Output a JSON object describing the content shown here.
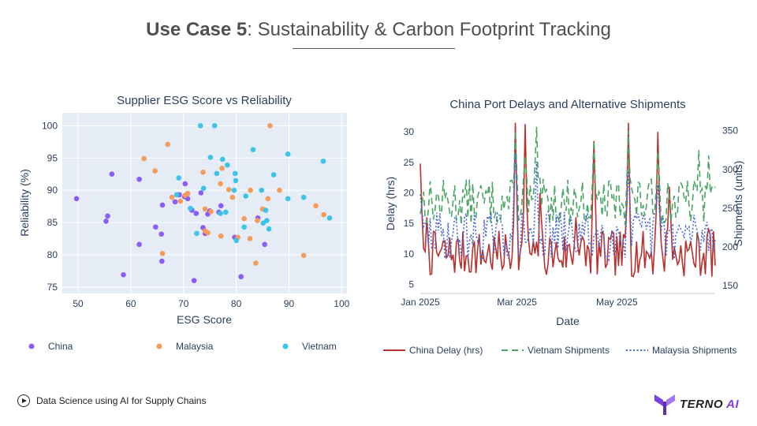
{
  "slide": {
    "title_bold": "Use Case 5",
    "title_rest": ": Sustainability & Carbon Footprint Tracking",
    "footer_text": "Data Science using AI for Supply Chains",
    "logo_main": "TERNO",
    "logo_ai": "AI"
  },
  "chart_data": [
    {
      "type": "scatter",
      "title": "Supplier ESG Score vs Reliability",
      "xlabel": "ESG Score",
      "ylabel": "Reliability (%)",
      "xlim": [
        47,
        101
      ],
      "ylim": [
        74,
        102
      ],
      "xticks": [
        50,
        60,
        70,
        80,
        90,
        100
      ],
      "yticks": [
        75,
        80,
        85,
        90,
        95,
        100
      ],
      "legend_position": "bottom",
      "series": [
        {
          "name": "China",
          "color": "#8b5cf6",
          "points": [
            [
              49.7,
              88.7
            ],
            [
              56.4,
              92.5
            ],
            [
              55.6,
              86.0
            ],
            [
              55.3,
              85.2
            ],
            [
              58.6,
              76.9
            ],
            [
              61.6,
              81.6
            ],
            [
              61.6,
              91.7
            ],
            [
              64.7,
              84.3
            ],
            [
              65.8,
              83.2
            ],
            [
              65.9,
              79.0
            ],
            [
              66.0,
              87.7
            ],
            [
              68.4,
              88.2
            ],
            [
              69.2,
              89.3
            ],
            [
              70.2,
              89.0
            ],
            [
              70.3,
              91.0
            ],
            [
              70.8,
              88.7
            ],
            [
              71.6,
              86.9
            ],
            [
              72.0,
              76.0
            ],
            [
              72.4,
              86.4
            ],
            [
              73.3,
              89.6
            ],
            [
              73.7,
              84.2
            ],
            [
              74.1,
              83.3
            ],
            [
              74.6,
              86.3
            ],
            [
              75.0,
              86.8
            ],
            [
              76.7,
              86.6
            ],
            [
              77.1,
              87.6
            ],
            [
              79.7,
              82.7
            ],
            [
              80.9,
              76.6
            ],
            [
              85.4,
              81.6
            ],
            [
              84.1,
              85.7
            ]
          ]
        },
        {
          "name": "Malaysia",
          "color": "#f59c5b",
          "points": [
            [
              62.5,
              94.9
            ],
            [
              64.6,
              93.0
            ],
            [
              66.0,
              80.2
            ],
            [
              67.0,
              97.1
            ],
            [
              67.8,
              88.9
            ],
            [
              69.4,
              88.3
            ],
            [
              70.3,
              89.2
            ],
            [
              70.8,
              89.5
            ],
            [
              73.7,
              92.8
            ],
            [
              74.1,
              83.7
            ],
            [
              74.1,
              87.1
            ],
            [
              74.6,
              83.4
            ],
            [
              75.2,
              86.7
            ],
            [
              77.0,
              91.0
            ],
            [
              77.1,
              82.9
            ],
            [
              77.3,
              93.4
            ],
            [
              78.6,
              90.1
            ],
            [
              79.3,
              88.9
            ],
            [
              80.3,
              82.7
            ],
            [
              81.5,
              85.6
            ],
            [
              82.6,
              82.5
            ],
            [
              82.7,
              90.0
            ],
            [
              83.7,
              78.7
            ],
            [
              84.0,
              85.3
            ],
            [
              85.0,
              87.1
            ],
            [
              86.0,
              88.7
            ],
            [
              86.4,
              100.0
            ],
            [
              88.2,
              90.0
            ],
            [
              92.8,
              79.9
            ],
            [
              95.1,
              87.6
            ],
            [
              96.6,
              86.2
            ]
          ]
        },
        {
          "name": "Vietnam",
          "color": "#3bc4e8",
          "points": [
            [
              69.1,
              91.9
            ],
            [
              73.2,
              100.0
            ],
            [
              73.8,
              90.3
            ],
            [
              75.1,
              95.1
            ],
            [
              75.9,
              100.0
            ],
            [
              76.3,
              92.6
            ],
            [
              77.4,
              94.8
            ],
            [
              77.0,
              86.4
            ],
            [
              78.0,
              86.6
            ],
            [
              78.3,
              93.9
            ],
            [
              79.6,
              90.0
            ],
            [
              79.8,
              92.6
            ],
            [
              79.9,
              91.5
            ],
            [
              80.0,
              82.2
            ],
            [
              81.5,
              84.3
            ],
            [
              81.8,
              89.1
            ],
            [
              83.2,
              96.3
            ],
            [
              84.8,
              90.0
            ],
            [
              85.1,
              84.9
            ],
            [
              85.6,
              86.9
            ],
            [
              85.8,
              85.3
            ],
            [
              86.2,
              84.0
            ],
            [
              87.1,
              92.4
            ],
            [
              89.8,
              95.6
            ],
            [
              89.8,
              88.7
            ],
            [
              92.8,
              88.9
            ],
            [
              96.5,
              94.5
            ],
            [
              97.7,
              85.7
            ],
            [
              72.5,
              83.3
            ],
            [
              68.7,
              89.3
            ],
            [
              71.3,
              87.2
            ]
          ]
        }
      ]
    },
    {
      "type": "line",
      "title": "China Port Delays and Alternative Shipments",
      "xlabel": "Date",
      "ylabel": "Delay (hrs)",
      "y2label": "Shipments (units)",
      "x_start": "2025-01-01",
      "x_days": 180,
      "xticks": [
        {
          "day": 0,
          "label": "Jan 2025"
        },
        {
          "day": 59,
          "label": "Mar 2025"
        },
        {
          "day": 120,
          "label": "May 2025"
        }
      ],
      "ylim": [
        3.5,
        33
      ],
      "y2lim": [
        140,
        372
      ],
      "yticks": [
        5,
        10,
        15,
        20,
        25,
        30
      ],
      "y2ticks": [
        150,
        200,
        250,
        300,
        350
      ],
      "legend_position": "bottom",
      "series": [
        {
          "name": "China Delay (hrs)",
          "axis": "left",
          "color": "#b8312f",
          "dash": "",
          "base": 10,
          "spikes": [
            [
              0,
              24.8
            ],
            [
              4,
              16
            ],
            [
              58,
              31.5
            ],
            [
              64,
              31.3
            ],
            [
              71,
              12
            ],
            [
              73,
              20
            ],
            [
              95,
              16
            ],
            [
              106,
              28.5
            ],
            [
              127,
              31.5
            ],
            [
              145,
              30
            ],
            [
              152,
              21
            ],
            [
              176,
              14
            ]
          ],
          "amp": 3.8,
          "seed": 7
        },
        {
          "name": "Vietnam Shipments",
          "axis": "right",
          "color": "#4aa564",
          "dash": "8,5",
          "base": 258,
          "spikes": [
            [
              58,
              350
            ],
            [
              71,
              355
            ],
            [
              64,
              318
            ],
            [
              106,
              337
            ],
            [
              127,
              350
            ],
            [
              145,
              323
            ],
            [
              170,
              325
            ],
            [
              176,
              318
            ]
          ],
          "amp": 30,
          "seed": 13
        },
        {
          "name": "Malaysia Shipments",
          "axis": "right",
          "color": "#4a68d6",
          "dash": "2,2.5",
          "base": 215,
          "spikes": [
            [
              0,
              268
            ],
            [
              58,
              320
            ],
            [
              71,
              310
            ],
            [
              127,
              298
            ],
            [
              145,
              280
            ]
          ],
          "amp": 32,
          "seed": 29
        }
      ]
    }
  ]
}
